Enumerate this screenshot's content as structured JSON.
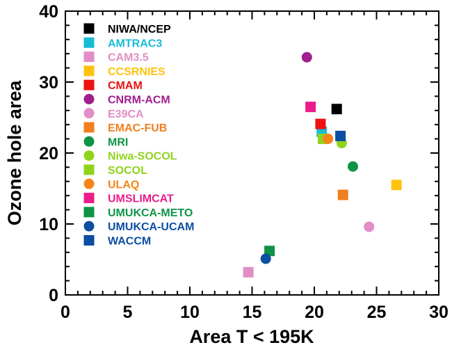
{
  "chart_data": {
    "type": "scatter",
    "xlabel": "Area T < 195K",
    "ylabel": "Ozone hole area",
    "xlim": [
      0,
      30
    ],
    "ylim": [
      0,
      40
    ],
    "xticks": [
      "0",
      "5",
      "10",
      "15",
      "20",
      "25",
      "30"
    ],
    "yticks": [
      "0",
      "10",
      "20",
      "30",
      "40"
    ],
    "grid": false,
    "legend_position": "top-left",
    "series": [
      {
        "name": "NIWA/NCEP",
        "color": "#000000",
        "marker": "square",
        "points": [
          [
            21.8,
            26.2
          ]
        ]
      },
      {
        "name": "AMTRAC3",
        "color": "#18bcd6",
        "marker": "square",
        "points": [
          [
            20.6,
            23.0
          ]
        ]
      },
      {
        "name": "CAM3.5",
        "color": "#e28ec6",
        "marker": "square",
        "points": [
          [
            14.7,
            3.2
          ]
        ]
      },
      {
        "name": "CCSRNIES",
        "color": "#ffc20e",
        "marker": "square",
        "points": [
          [
            26.6,
            15.5
          ]
        ]
      },
      {
        "name": "CMAM",
        "color": "#ee1111",
        "marker": "square",
        "points": [
          [
            20.5,
            24.1
          ]
        ]
      },
      {
        "name": "CNRM-ACM",
        "color": "#a01e8e",
        "marker": "circle",
        "points": [
          [
            19.4,
            33.5
          ]
        ]
      },
      {
        "name": "E39CA",
        "color": "#e28ec6",
        "marker": "circle",
        "points": [
          [
            24.4,
            9.6
          ]
        ]
      },
      {
        "name": "EMAC-FUB",
        "color": "#f07f1e",
        "marker": "square",
        "points": [
          [
            22.3,
            14.1
          ]
        ]
      },
      {
        "name": "MRI",
        "color": "#0e9447",
        "marker": "circle",
        "points": [
          [
            23.1,
            18.1
          ]
        ]
      },
      {
        "name": "Niwa-SOCOL",
        "color": "#90d31c",
        "marker": "circle",
        "points": [
          [
            22.2,
            21.4
          ]
        ]
      },
      {
        "name": "SOCOL",
        "color": "#90d31c",
        "marker": "square",
        "points": [
          [
            20.7,
            22.0
          ]
        ]
      },
      {
        "name": "ULAQ",
        "color": "#f58519",
        "marker": "circle",
        "points": [
          [
            21.1,
            22.0
          ]
        ]
      },
      {
        "name": "UMSLIMCAT",
        "color": "#ec1c8b",
        "marker": "square",
        "points": [
          [
            19.7,
            26.5
          ]
        ]
      },
      {
        "name": "UMUKCA-METO",
        "color": "#0e9447",
        "marker": "square",
        "points": [
          [
            16.4,
            6.2
          ]
        ]
      },
      {
        "name": "UMUKCA-UCAM",
        "color": "#0c4ea2",
        "marker": "circle",
        "points": [
          [
            16.1,
            5.1
          ]
        ]
      },
      {
        "name": "WACCM",
        "color": "#0c4ea2",
        "marker": "square",
        "points": [
          [
            22.1,
            22.4
          ]
        ]
      }
    ]
  }
}
